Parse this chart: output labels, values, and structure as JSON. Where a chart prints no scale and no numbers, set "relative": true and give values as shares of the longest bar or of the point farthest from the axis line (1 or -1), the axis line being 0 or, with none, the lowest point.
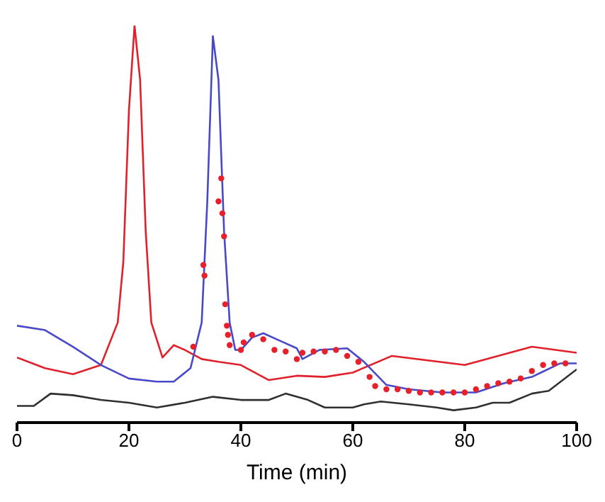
{
  "chart_data": {
    "type": "line",
    "relative": true,
    "xlabel": "Time (min)",
    "xlim": [
      0,
      100
    ],
    "xticks": [
      0,
      20,
      40,
      60,
      80,
      100
    ],
    "line_style": "solid",
    "series": [
      {
        "color": "#e0202a",
        "x": [
          0,
          5,
          10,
          15,
          18,
          19,
          20,
          21,
          22,
          23,
          24,
          26,
          28,
          30,
          33,
          36,
          40,
          45,
          50,
          55,
          60,
          67,
          80,
          92,
          100
        ],
        "values": [
          0.164,
          0.137,
          0.122,
          0.145,
          0.252,
          0.405,
          0.786,
          1,
          0.863,
          0.481,
          0.252,
          0.164,
          0.195,
          0.183,
          0.16,
          0.153,
          0.145,
          0.107,
          0.118,
          0.115,
          0.126,
          0.168,
          0.145,
          0.191,
          0.176
        ]
      },
      {
        "color": "#4848c8",
        "x": [
          0,
          5,
          10,
          15,
          20,
          25,
          28,
          31,
          33,
          34,
          35,
          36,
          37,
          38,
          39,
          40,
          42,
          44,
          47,
          50,
          51,
          54,
          59,
          62,
          66,
          70,
          76,
          82,
          87,
          92,
          97,
          100
        ],
        "values": [
          0.244,
          0.233,
          0.191,
          0.145,
          0.111,
          0.103,
          0.103,
          0.137,
          0.252,
          0.557,
          0.973,
          0.863,
          0.481,
          0.252,
          0.183,
          0.183,
          0.214,
          0.225,
          0.206,
          0.187,
          0.16,
          0.183,
          0.187,
          0.153,
          0.095,
          0.084,
          0.076,
          0.076,
          0.099,
          0.115,
          0.149,
          0.149
        ]
      },
      {
        "type": "scatter",
        "marker": "circle",
        "color": "#e8202a",
        "x": [
          31.5,
          33.3,
          33.5,
          36,
          36.5,
          36.7,
          37,
          37.2,
          37.5,
          37.7,
          38,
          40,
          40.5,
          42,
          44,
          46,
          48,
          50,
          51,
          53,
          55,
          57,
          59,
          61,
          63,
          64,
          66,
          68,
          70,
          72,
          74,
          76,
          78,
          80,
          82,
          84,
          86,
          88,
          90,
          92,
          94,
          96,
          98
        ],
        "values": [
          0.191,
          0.397,
          0.37,
          0.557,
          0.615,
          0.527,
          0.469,
          0.298,
          0.244,
          0.221,
          0.195,
          0.183,
          0.202,
          0.221,
          0.21,
          0.183,
          0.179,
          0.16,
          0.176,
          0.179,
          0.179,
          0.183,
          0.168,
          0.153,
          0.115,
          0.092,
          0.084,
          0.084,
          0.08,
          0.076,
          0.076,
          0.076,
          0.076,
          0.076,
          0.084,
          0.092,
          0.099,
          0.103,
          0.111,
          0.13,
          0.145,
          0.149,
          0.149
        ]
      },
      {
        "color": "#303030",
        "x": [
          0,
          3,
          6,
          10,
          15,
          20,
          25,
          30,
          35,
          40,
          45,
          48,
          52,
          55,
          60,
          62,
          65,
          70,
          75,
          78,
          82,
          85,
          88,
          92,
          95,
          100
        ],
        "values": [
          0.042,
          0.042,
          0.073,
          0.069,
          0.057,
          0.05,
          0.038,
          0.05,
          0.065,
          0.057,
          0.057,
          0.073,
          0.057,
          0.038,
          0.038,
          0.046,
          0.053,
          0.046,
          0.038,
          0.031,
          0.038,
          0.05,
          0.05,
          0.073,
          0.08,
          0.134
        ]
      }
    ]
  }
}
